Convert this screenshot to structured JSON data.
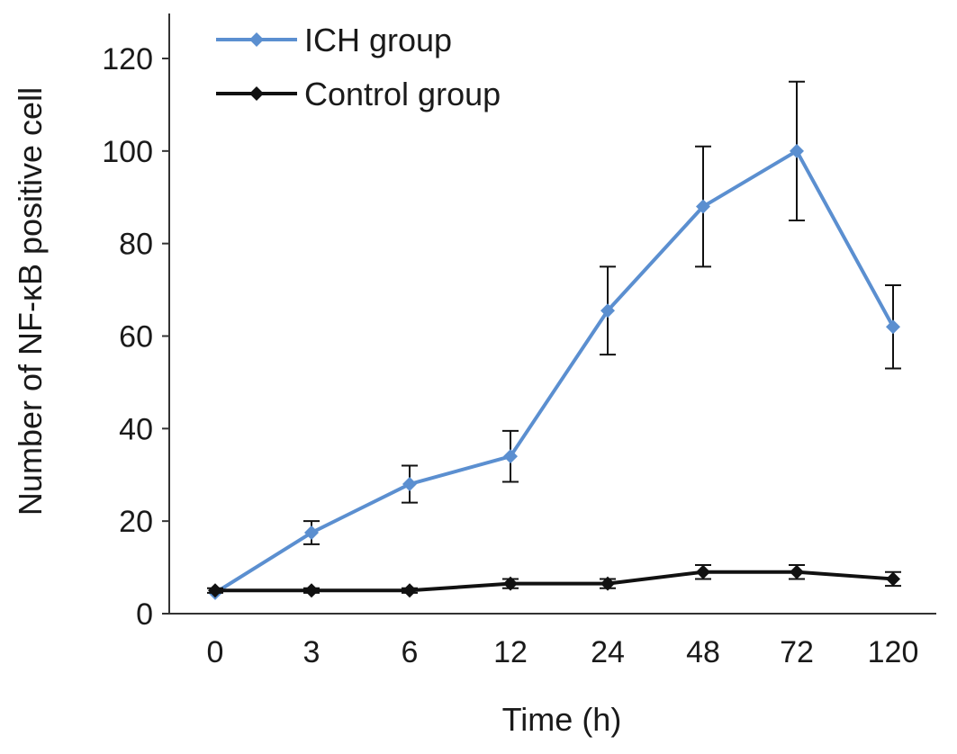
{
  "chart_data": {
    "type": "line",
    "title": "",
    "xlabel": "Time (h)",
    "ylabel": "Number of NF-κB positive cell",
    "categories": [
      "0",
      "3",
      "6",
      "12",
      "24",
      "48",
      "72",
      "120"
    ],
    "ylim": [
      0,
      120
    ],
    "yticks": [
      "0",
      "20",
      "40",
      "60",
      "80",
      "100",
      "120"
    ],
    "grid": false,
    "legend_position": "top-left",
    "series": [
      {
        "name": "ICH group",
        "color": "#5b8fd0",
        "marker": "diamond",
        "values": [
          4.5,
          17.5,
          28,
          34,
          65.5,
          88,
          100,
          62
        ],
        "error": [
          0,
          2.5,
          4,
          5.5,
          9.5,
          13,
          15,
          9
        ]
      },
      {
        "name": "Control group",
        "color": "#111111",
        "marker": "diamond",
        "values": [
          5,
          5,
          5,
          6.5,
          6.5,
          9,
          9,
          7.5
        ],
        "error": [
          0.5,
          0.5,
          0.5,
          1,
          1,
          1.5,
          1.5,
          1.5
        ]
      }
    ]
  }
}
